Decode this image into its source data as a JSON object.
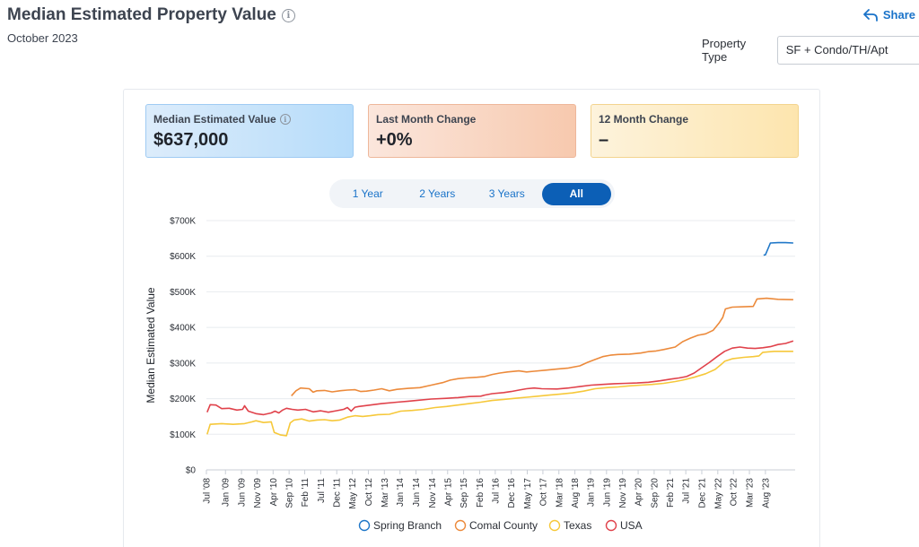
{
  "header": {
    "title": "Median Estimated Property Value",
    "subtitle": "October 2023",
    "share_label": "Share",
    "property_type_label": "Property Type",
    "property_type_value": "SF + Condo/TH/Apt"
  },
  "stats": [
    {
      "label": "Median Estimated Value",
      "value": "$637,000"
    },
    {
      "label": "Last Month Change",
      "value": "+0%"
    },
    {
      "label": "12 Month Change",
      "value": "–"
    }
  ],
  "range_tabs": [
    "1 Year",
    "2 Years",
    "3 Years",
    "All"
  ],
  "active_range": "All",
  "chart_data": {
    "type": "line",
    "title": "",
    "xlabel": "",
    "ylabel": "Median Estimated Value",
    "ylim": [
      0,
      700000
    ],
    "xlim": [
      2008.5,
      2023.95
    ],
    "y_ticks": [
      {
        "value": 0,
        "label": "$0"
      },
      {
        "value": 100000,
        "label": "$100K"
      },
      {
        "value": 200000,
        "label": "$200K"
      },
      {
        "value": 300000,
        "label": "$300K"
      },
      {
        "value": 400000,
        "label": "$400K"
      },
      {
        "value": 500000,
        "label": "$500K"
      },
      {
        "value": 600000,
        "label": "$600K"
      },
      {
        "value": 700000,
        "label": "$700K"
      }
    ],
    "x_ticks": [
      {
        "t": 2008.5,
        "label": "Jul '08"
      },
      {
        "t": 2009.0,
        "label": "Jan '09"
      },
      {
        "t": 2009.42,
        "label": "Jun '09"
      },
      {
        "t": 2009.83,
        "label": "Nov '09"
      },
      {
        "t": 2010.25,
        "label": "Apr '10"
      },
      {
        "t": 2010.67,
        "label": "Sep '10"
      },
      {
        "t": 2011.08,
        "label": "Feb '11"
      },
      {
        "t": 2011.5,
        "label": "Jul '11"
      },
      {
        "t": 2011.92,
        "label": "Dec '11"
      },
      {
        "t": 2012.33,
        "label": "May '12"
      },
      {
        "t": 2012.75,
        "label": "Oct '12"
      },
      {
        "t": 2013.17,
        "label": "Mar '13"
      },
      {
        "t": 2013.58,
        "label": "Jan '14"
      },
      {
        "t": 2014.0,
        "label": "Jun '14"
      },
      {
        "t": 2014.42,
        "label": "Nov '14"
      },
      {
        "t": 2014.83,
        "label": "Apr '15"
      },
      {
        "t": 2015.25,
        "label": "Sep '15"
      },
      {
        "t": 2015.67,
        "label": "Feb '16"
      },
      {
        "t": 2016.08,
        "label": "Jul '16"
      },
      {
        "t": 2016.5,
        "label": "Dec '16"
      },
      {
        "t": 2016.92,
        "label": "May '17"
      },
      {
        "t": 2017.33,
        "label": "Oct '17"
      },
      {
        "t": 2017.75,
        "label": "Mar '18"
      },
      {
        "t": 2018.17,
        "label": "Aug '18"
      },
      {
        "t": 2018.58,
        "label": "Jan '19"
      },
      {
        "t": 2019.0,
        "label": "Jun '19"
      },
      {
        "t": 2019.42,
        "label": "Nov '19"
      },
      {
        "t": 2019.83,
        "label": "Apr '20"
      },
      {
        "t": 2020.25,
        "label": "Sep '20"
      },
      {
        "t": 2020.67,
        "label": "Feb '21"
      },
      {
        "t": 2021.08,
        "label": "Jul '21"
      },
      {
        "t": 2021.5,
        "label": "Dec '21"
      },
      {
        "t": 2021.92,
        "label": "May '22"
      },
      {
        "t": 2022.33,
        "label": "Oct '22"
      },
      {
        "t": 2022.75,
        "label": "Mar '23"
      },
      {
        "t": 2023.17,
        "label": "Aug '23"
      }
    ],
    "series": [
      {
        "name": "Spring Branch",
        "color": "#1f77c8",
        "points": [
          [
            2023.12,
            603000
          ],
          [
            2023.17,
            604000
          ],
          [
            2023.24,
            622000
          ],
          [
            2023.3,
            637000
          ],
          [
            2023.5,
            638000
          ],
          [
            2023.7,
            638000
          ],
          [
            2023.9,
            637000
          ]
        ]
      },
      {
        "name": "Comal County",
        "color": "#ec8a3b",
        "points": [
          [
            2010.73,
            208000
          ],
          [
            2010.85,
            222000
          ],
          [
            2010.97,
            230000
          ],
          [
            2011.2,
            228000
          ],
          [
            2011.3,
            218000
          ],
          [
            2011.4,
            222000
          ],
          [
            2011.6,
            223000
          ],
          [
            2011.8,
            219000
          ],
          [
            2012.0,
            222000
          ],
          [
            2012.2,
            224000
          ],
          [
            2012.4,
            225000
          ],
          [
            2012.55,
            220000
          ],
          [
            2012.7,
            221000
          ],
          [
            2012.9,
            224000
          ],
          [
            2013.1,
            228000
          ],
          [
            2013.3,
            222000
          ],
          [
            2013.5,
            226000
          ],
          [
            2013.8,
            229000
          ],
          [
            2014.1,
            231000
          ],
          [
            2014.4,
            238000
          ],
          [
            2014.7,
            245000
          ],
          [
            2014.9,
            252000
          ],
          [
            2015.1,
            256000
          ],
          [
            2015.3,
            258000
          ],
          [
            2015.6,
            260000
          ],
          [
            2015.8,
            262000
          ],
          [
            2016.0,
            268000
          ],
          [
            2016.2,
            272000
          ],
          [
            2016.4,
            275000
          ],
          [
            2016.7,
            278000
          ],
          [
            2016.9,
            275000
          ],
          [
            2017.1,
            277000
          ],
          [
            2017.4,
            280000
          ],
          [
            2017.7,
            283000
          ],
          [
            2018.0,
            286000
          ],
          [
            2018.3,
            292000
          ],
          [
            2018.5,
            302000
          ],
          [
            2018.7,
            310000
          ],
          [
            2018.9,
            318000
          ],
          [
            2019.1,
            322000
          ],
          [
            2019.3,
            324000
          ],
          [
            2019.6,
            325000
          ],
          [
            2019.9,
            328000
          ],
          [
            2020.1,
            332000
          ],
          [
            2020.3,
            334000
          ],
          [
            2020.5,
            338000
          ],
          [
            2020.8,
            345000
          ],
          [
            2021.0,
            360000
          ],
          [
            2021.2,
            370000
          ],
          [
            2021.4,
            378000
          ],
          [
            2021.6,
            382000
          ],
          [
            2021.8,
            392000
          ],
          [
            2021.95,
            412000
          ],
          [
            2022.05,
            428000
          ],
          [
            2022.12,
            452000
          ],
          [
            2022.3,
            457000
          ],
          [
            2022.6,
            458000
          ],
          [
            2022.85,
            459000
          ],
          [
            2022.95,
            480000
          ],
          [
            2023.2,
            482000
          ],
          [
            2023.5,
            479000
          ],
          [
            2023.9,
            478000
          ]
        ]
      },
      {
        "name": "Texas",
        "color": "#f6c83a",
        "points": [
          [
            2008.52,
            100000
          ],
          [
            2008.6,
            128000
          ],
          [
            2008.9,
            130000
          ],
          [
            2009.2,
            128000
          ],
          [
            2009.5,
            130000
          ],
          [
            2009.7,
            135000
          ],
          [
            2009.8,
            138000
          ],
          [
            2010.0,
            133000
          ],
          [
            2010.2,
            135000
          ],
          [
            2010.28,
            105000
          ],
          [
            2010.45,
            98000
          ],
          [
            2010.6,
            96000
          ],
          [
            2010.7,
            132000
          ],
          [
            2010.8,
            140000
          ],
          [
            2011.0,
            143000
          ],
          [
            2011.2,
            137000
          ],
          [
            2011.4,
            140000
          ],
          [
            2011.6,
            141000
          ],
          [
            2011.8,
            138000
          ],
          [
            2012.0,
            140000
          ],
          [
            2012.2,
            148000
          ],
          [
            2012.4,
            152000
          ],
          [
            2012.6,
            150000
          ],
          [
            2012.8,
            152000
          ],
          [
            2013.0,
            155000
          ],
          [
            2013.3,
            156000
          ],
          [
            2013.6,
            165000
          ],
          [
            2013.9,
            167000
          ],
          [
            2014.2,
            170000
          ],
          [
            2014.5,
            175000
          ],
          [
            2014.8,
            178000
          ],
          [
            2015.1,
            182000
          ],
          [
            2015.4,
            186000
          ],
          [
            2015.7,
            190000
          ],
          [
            2016.0,
            195000
          ],
          [
            2016.3,
            198000
          ],
          [
            2016.6,
            201000
          ],
          [
            2016.9,
            204000
          ],
          [
            2017.2,
            207000
          ],
          [
            2017.5,
            210000
          ],
          [
            2017.8,
            213000
          ],
          [
            2018.1,
            216000
          ],
          [
            2018.4,
            221000
          ],
          [
            2018.7,
            228000
          ],
          [
            2019.0,
            231000
          ],
          [
            2019.3,
            233000
          ],
          [
            2019.6,
            236000
          ],
          [
            2019.9,
            238000
          ],
          [
            2020.2,
            240000
          ],
          [
            2020.5,
            243000
          ],
          [
            2020.8,
            248000
          ],
          [
            2021.0,
            252000
          ],
          [
            2021.3,
            260000
          ],
          [
            2021.6,
            270000
          ],
          [
            2021.85,
            282000
          ],
          [
            2022.0,
            295000
          ],
          [
            2022.1,
            305000
          ],
          [
            2022.3,
            312000
          ],
          [
            2022.6,
            316000
          ],
          [
            2022.85,
            318000
          ],
          [
            2023.0,
            320000
          ],
          [
            2023.1,
            330000
          ],
          [
            2023.4,
            333000
          ],
          [
            2023.9,
            333000
          ]
        ]
      },
      {
        "name": "USA",
        "color": "#e0424b",
        "points": [
          [
            2008.52,
            162000
          ],
          [
            2008.6,
            183000
          ],
          [
            2008.75,
            182000
          ],
          [
            2008.9,
            172000
          ],
          [
            2009.1,
            173000
          ],
          [
            2009.3,
            168000
          ],
          [
            2009.45,
            170000
          ],
          [
            2009.5,
            180000
          ],
          [
            2009.6,
            165000
          ],
          [
            2009.8,
            158000
          ],
          [
            2010.0,
            155000
          ],
          [
            2010.2,
            160000
          ],
          [
            2010.3,
            165000
          ],
          [
            2010.4,
            160000
          ],
          [
            2010.5,
            168000
          ],
          [
            2010.6,
            173000
          ],
          [
            2010.75,
            170000
          ],
          [
            2010.9,
            168000
          ],
          [
            2011.1,
            170000
          ],
          [
            2011.3,
            163000
          ],
          [
            2011.5,
            166000
          ],
          [
            2011.7,
            162000
          ],
          [
            2011.9,
            166000
          ],
          [
            2012.1,
            170000
          ],
          [
            2012.2,
            175000
          ],
          [
            2012.3,
            165000
          ],
          [
            2012.4,
            176000
          ],
          [
            2012.5,
            178000
          ],
          [
            2012.8,
            182000
          ],
          [
            2013.1,
            186000
          ],
          [
            2013.5,
            190000
          ],
          [
            2013.8,
            193000
          ],
          [
            2014.1,
            196000
          ],
          [
            2014.4,
            199000
          ],
          [
            2014.8,
            201000
          ],
          [
            2015.1,
            203000
          ],
          [
            2015.4,
            206000
          ],
          [
            2015.7,
            207000
          ],
          [
            2015.8,
            210000
          ],
          [
            2016.0,
            214000
          ],
          [
            2016.3,
            217000
          ],
          [
            2016.5,
            220000
          ],
          [
            2016.7,
            224000
          ],
          [
            2016.9,
            228000
          ],
          [
            2017.1,
            230000
          ],
          [
            2017.3,
            228000
          ],
          [
            2017.7,
            227000
          ],
          [
            2018.0,
            230000
          ],
          [
            2018.3,
            234000
          ],
          [
            2018.6,
            238000
          ],
          [
            2018.9,
            240000
          ],
          [
            2019.2,
            242000
          ],
          [
            2019.5,
            243000
          ],
          [
            2019.8,
            244000
          ],
          [
            2020.1,
            246000
          ],
          [
            2020.4,
            250000
          ],
          [
            2020.7,
            255000
          ],
          [
            2020.9,
            258000
          ],
          [
            2021.1,
            262000
          ],
          [
            2021.3,
            272000
          ],
          [
            2021.5,
            287000
          ],
          [
            2021.7,
            302000
          ],
          [
            2021.9,
            318000
          ],
          [
            2022.1,
            333000
          ],
          [
            2022.3,
            342000
          ],
          [
            2022.5,
            345000
          ],
          [
            2022.7,
            342000
          ],
          [
            2022.9,
            341000
          ],
          [
            2023.1,
            343000
          ],
          [
            2023.3,
            346000
          ],
          [
            2023.5,
            352000
          ],
          [
            2023.7,
            355000
          ],
          [
            2023.9,
            362000
          ]
        ]
      }
    ],
    "legend": {
      "placement": "bottom",
      "entries": [
        "Spring Branch",
        "Comal County",
        "Texas",
        "USA"
      ]
    }
  }
}
